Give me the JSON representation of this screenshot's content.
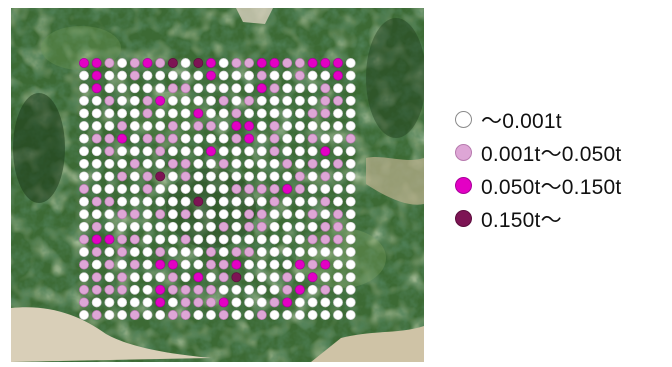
{
  "map": {
    "grid_rows": 21,
    "grid_cols": 22,
    "cells": [
      "2210121303201122112220",
      "0200100000200010010020",
      "0200000110000021000100",
      "0010012000010100000110",
      "0000010002001000001100",
      "0001000101102201000000",
      "0112011100001201001001",
      "0010001000200001000200",
      "0000100110010000101010",
      "0001013010000000010100",
      "1000010000001111210000",
      "0110000003000001000100",
      "0001101010000110001010",
      "0100000000010110000110",
      "1221100010000000001110",
      "0101001000101100000000",
      "1010102200112000021200",
      "0101000102013000102000",
      "1111002111100000120100",
      "1000002011120001200000",
      "0100100110010010000000"
    ]
  },
  "legend": {
    "items": [
      {
        "label": "〜0.001t",
        "color": "#ffffff",
        "border": "#8a8a8a"
      },
      {
        "label": "0.001t〜0.050t",
        "color": "#dea6d6",
        "border": "#b77aae"
      },
      {
        "label": "0.050t〜0.150t",
        "color": "#e300c4",
        "border": "#a8009a"
      },
      {
        "label": "0.150t〜",
        "color": "#7d1454",
        "border": "#5c0d3d"
      }
    ]
  }
}
